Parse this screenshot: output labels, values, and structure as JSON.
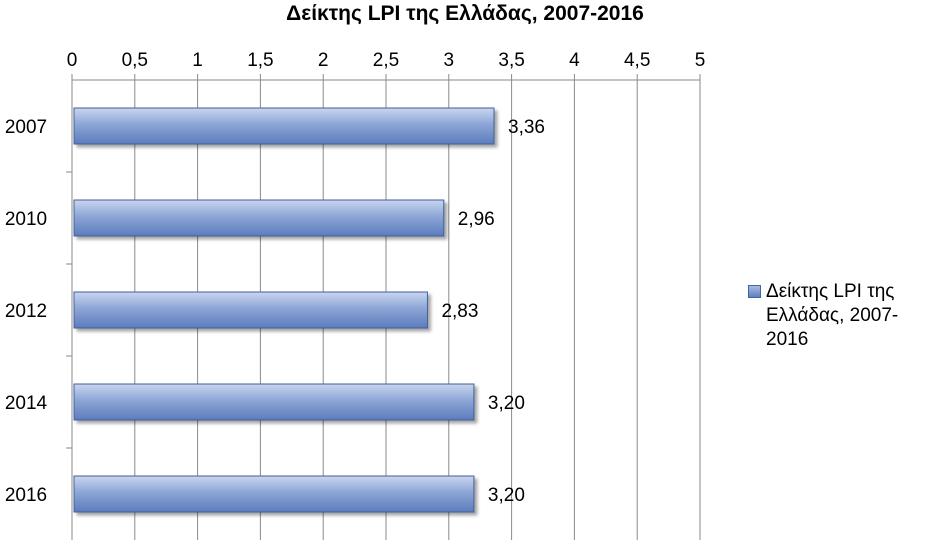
{
  "chart_data": {
    "type": "bar",
    "orientation": "horizontal",
    "title": "Δείκτης LPI της Ελλάδας, 2007-2016",
    "categories": [
      "2007",
      "2010",
      "2012",
      "2014",
      "2016"
    ],
    "series": [
      {
        "name": "Δείκτης LPI της Ελλάδας, 2007-2016",
        "values": [
          3.36,
          2.96,
          2.83,
          3.2,
          3.2
        ]
      }
    ],
    "data_labels": [
      "3,36",
      "2,96",
      "2,83",
      "3,20",
      "3,20"
    ],
    "x_ticks": [
      "0",
      "0,5",
      "1",
      "1,5",
      "2",
      "2,5",
      "3",
      "3,5",
      "4",
      "4,5",
      "5"
    ],
    "xlim": [
      0,
      5
    ],
    "x_axis_position": "top",
    "grid": true,
    "legend_position": "right",
    "bar_color": "#7b96cc"
  }
}
